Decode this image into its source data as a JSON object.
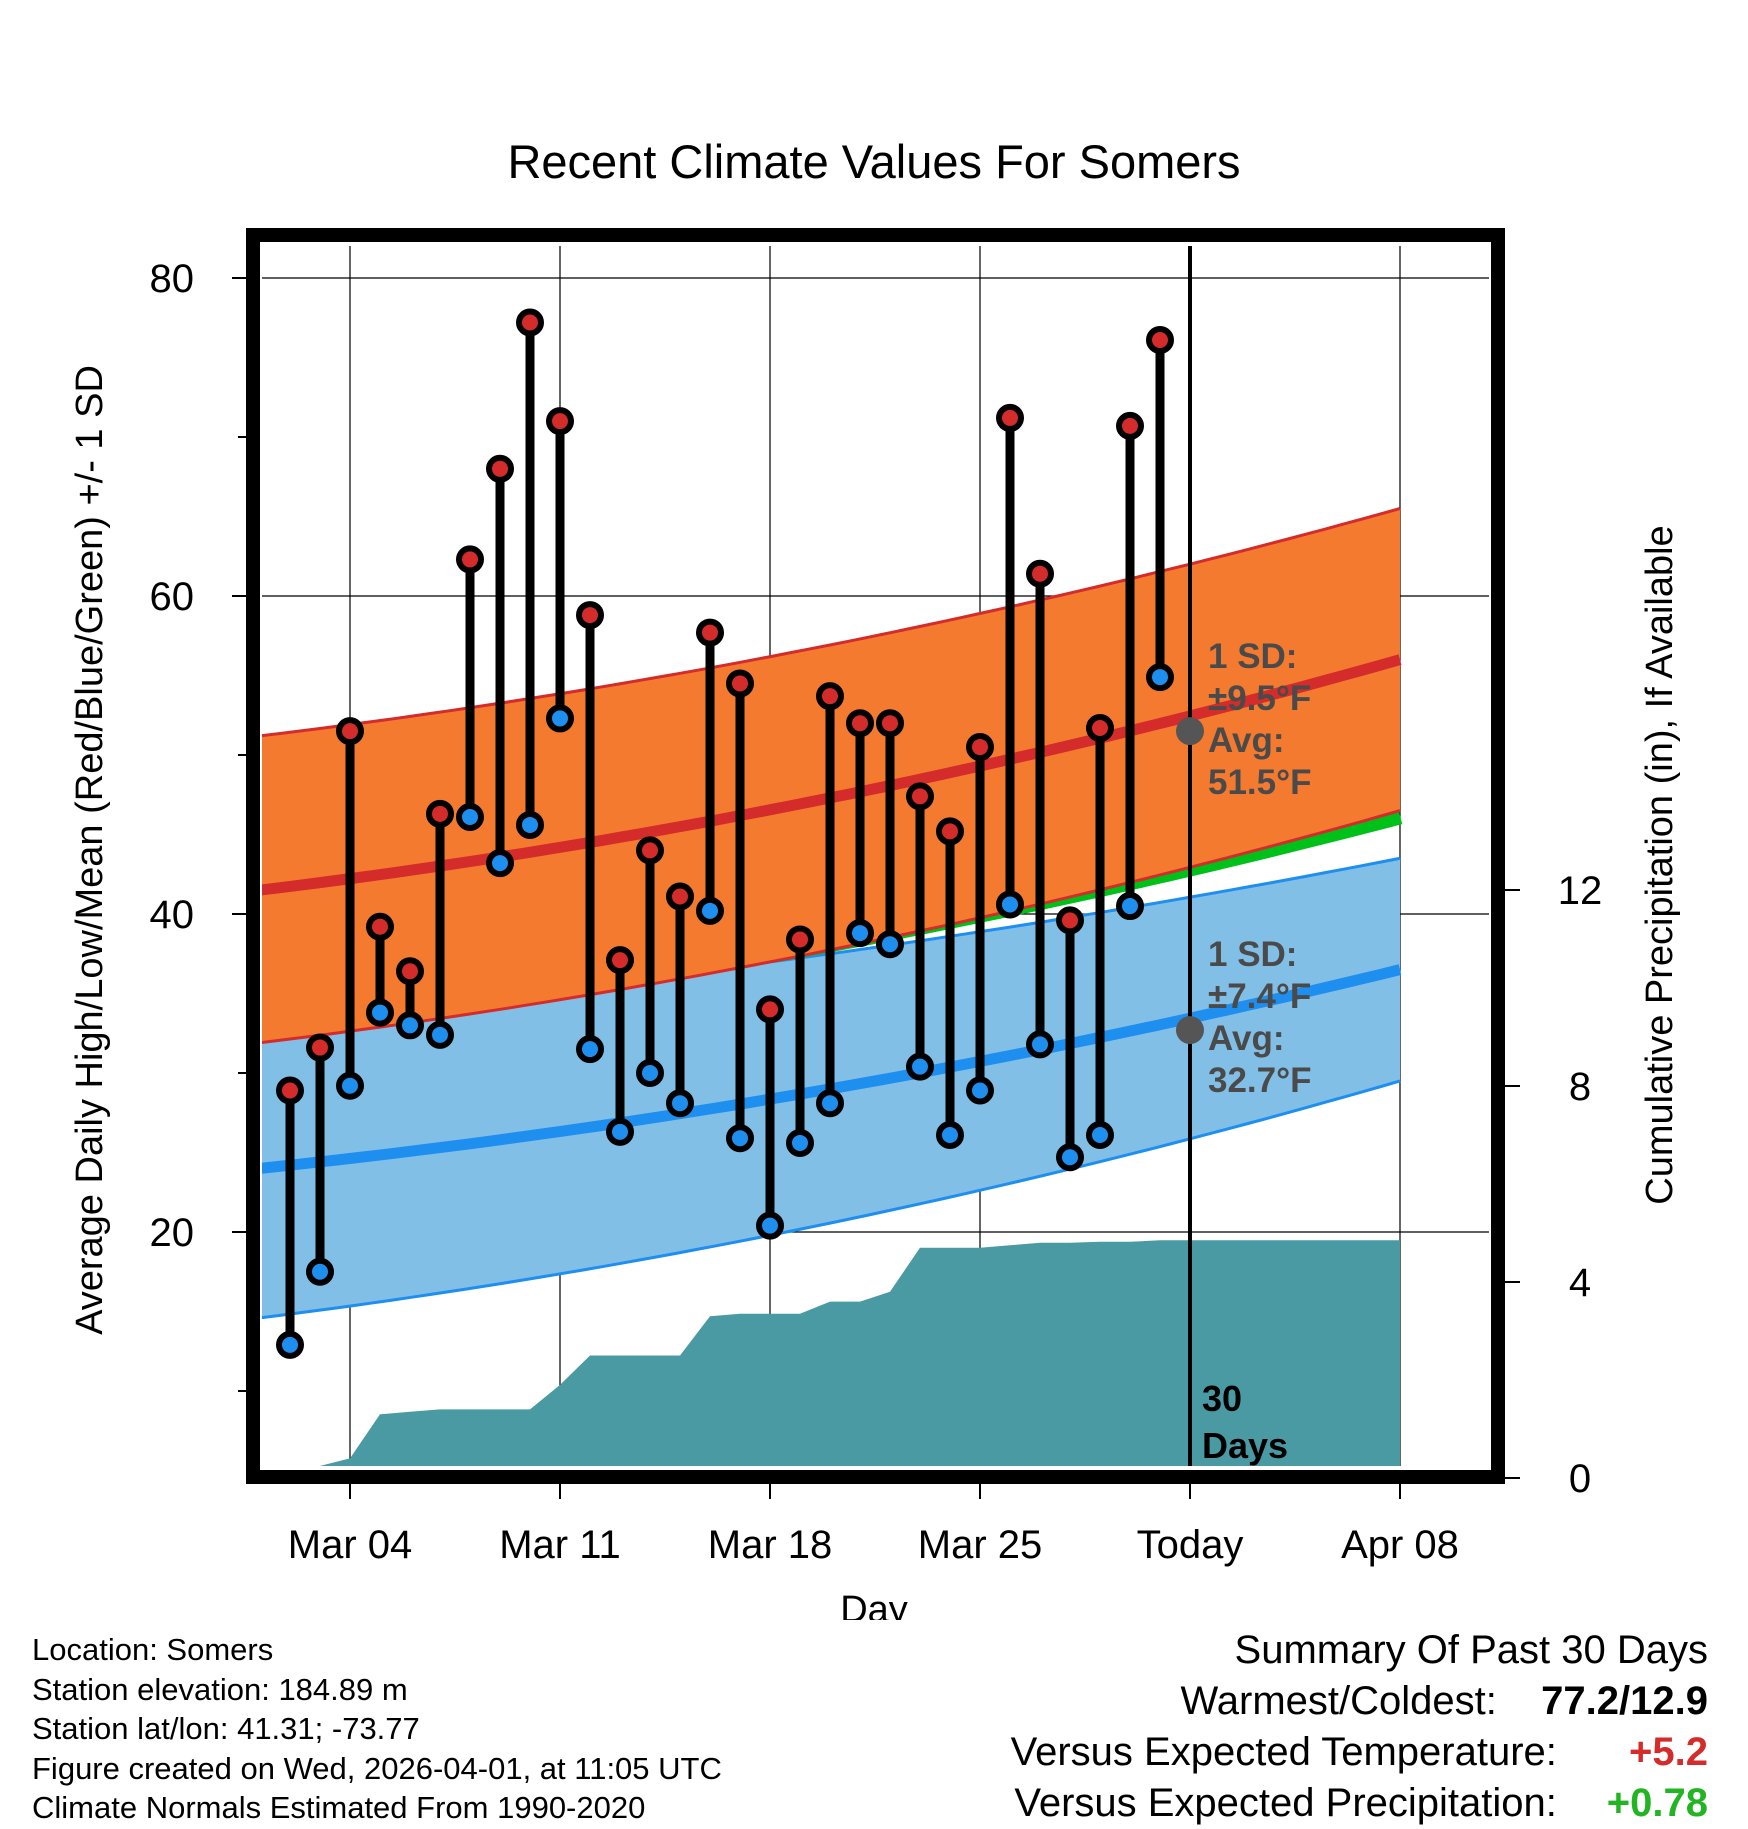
{
  "chart_data": {
    "type": "line",
    "title": "Recent Climate Values For Somers",
    "xlabel": "Day",
    "ylabel_left": "Average Daily High/Low/Mean (Red/Blue/Green) +/- 1 SD",
    "ylabel_right": "Cumulative Precipitation (in), If Available",
    "x_range": [
      0,
      38
    ],
    "y_left_range": [
      5,
      82.5
    ],
    "y_right_range": [
      0,
      17.5
    ],
    "x_ticks": [
      {
        "x": 3,
        "label": "Mar 04"
      },
      {
        "x": 10,
        "label": "Mar 11"
      },
      {
        "x": 17,
        "label": "Mar 18"
      },
      {
        "x": 24,
        "label": "Mar 25"
      },
      {
        "x": 31,
        "label": "Today"
      },
      {
        "x": 38,
        "label": "Apr 08"
      }
    ],
    "y_left_ticks": [
      20,
      40,
      60,
      80
    ],
    "y_left_minor_ticks": [
      10,
      30,
      50,
      70
    ],
    "y_right_ticks": [
      0,
      4,
      8,
      12
    ],
    "today_x": 31,
    "today_label": [
      "30",
      "Days"
    ],
    "normals": {
      "high_mean": {
        "start": 41.5,
        "end": 56.0
      },
      "high_upper": {
        "start": 51.2,
        "end": 65.5
      },
      "high_lower": {
        "start": 31.9,
        "end": 46.5
      },
      "low_mean": {
        "start": 24.0,
        "end": 36.5
      },
      "low_upper": {
        "start": 33.5,
        "end": 43.5
      },
      "low_lower": {
        "start": 14.6,
        "end": 29.5
      },
      "avg_mean": {
        "start": 32.8,
        "end": 46.2
      }
    },
    "high_annotation": [
      "1 SD:",
      "±9.5°F",
      "Avg:",
      "51.5°F"
    ],
    "high_annotation_value": 51.5,
    "low_annotation": [
      "1 SD:",
      "±7.4°F",
      "Avg:",
      "32.7°F"
    ],
    "low_annotation_value": 32.7,
    "days": [
      1,
      2,
      3,
      4,
      5,
      6,
      7,
      8,
      9,
      10,
      11,
      12,
      13,
      14,
      15,
      16,
      17,
      18,
      19,
      20,
      21,
      22,
      23,
      24,
      25,
      26,
      27,
      28,
      29,
      30
    ],
    "highs": [
      28.9,
      31.6,
      51.5,
      39.2,
      36.4,
      46.3,
      62.3,
      68.0,
      77.2,
      71.0,
      58.8,
      37.1,
      44.0,
      41.1,
      57.7,
      54.5,
      34.0,
      38.4,
      53.7,
      52.0,
      52.0,
      47.4,
      45.2,
      50.5,
      71.2,
      61.4,
      39.6,
      51.7,
      70.7,
      76.1
    ],
    "lows": [
      12.9,
      17.5,
      29.2,
      33.8,
      33.0,
      32.4,
      46.1,
      43.2,
      45.6,
      52.3,
      31.5,
      26.3,
      30.0,
      28.1,
      40.2,
      25.9,
      20.4,
      25.6,
      28.1,
      38.8,
      38.1,
      30.4,
      26.1,
      28.9,
      40.6,
      31.8,
      24.7,
      26.1,
      40.5,
      54.9
    ],
    "precip_cumulative": [
      [
        1,
        0.0
      ],
      [
        1.7,
        0.2
      ],
      [
        3,
        0.4
      ],
      [
        4,
        1.3
      ],
      [
        5,
        1.35
      ],
      [
        6,
        1.4
      ],
      [
        8,
        1.4
      ],
      [
        9,
        1.4
      ],
      [
        10,
        1.9
      ],
      [
        11,
        2.5
      ],
      [
        12,
        2.5
      ],
      [
        13,
        2.5
      ],
      [
        14,
        2.5
      ],
      [
        15,
        3.3
      ],
      [
        16,
        3.35
      ],
      [
        17,
        3.35
      ],
      [
        18,
        3.35
      ],
      [
        19,
        3.6
      ],
      [
        20,
        3.6
      ],
      [
        21,
        3.8
      ],
      [
        22,
        4.7
      ],
      [
        23,
        4.7
      ],
      [
        24,
        4.7
      ],
      [
        25,
        4.75
      ],
      [
        26,
        4.8
      ],
      [
        27,
        4.8
      ],
      [
        28,
        4.82
      ],
      [
        29,
        4.82
      ],
      [
        30,
        4.85
      ],
      [
        38,
        4.85
      ]
    ]
  },
  "footer_left": [
    "Location: Somers",
    "Station elevation: 184.89 m",
    "Station lat/lon: 41.31; -73.77",
    "Figure created on Wed, 2026-04-01, at 11:05 UTC",
    "Climate Normals Estimated From 1990-2020"
  ],
  "summary": {
    "title": "Summary Of Past 30 Days",
    "warm_cold_label": "Warmest/Coldest:",
    "warm_cold_value": "77.2/12.9",
    "temp_label": "Versus Expected Temperature:",
    "temp_value": "+5.2",
    "precip_label": "Versus Expected Precipitation:",
    "precip_value": "+0.78"
  },
  "colors": {
    "high_band": "#f47a30",
    "high_line": "#d42b2b",
    "low_band": "#82bfe6",
    "low_line": "#1e8fef",
    "avg_line": "#00c01a",
    "precip": "#4a9aa4",
    "high_dot": "#d42b2b",
    "low_dot": "#1e8fef",
    "annotation": "#4a4a4a",
    "temp_value": "#d42b2b",
    "precip_value": "#22b422"
  }
}
